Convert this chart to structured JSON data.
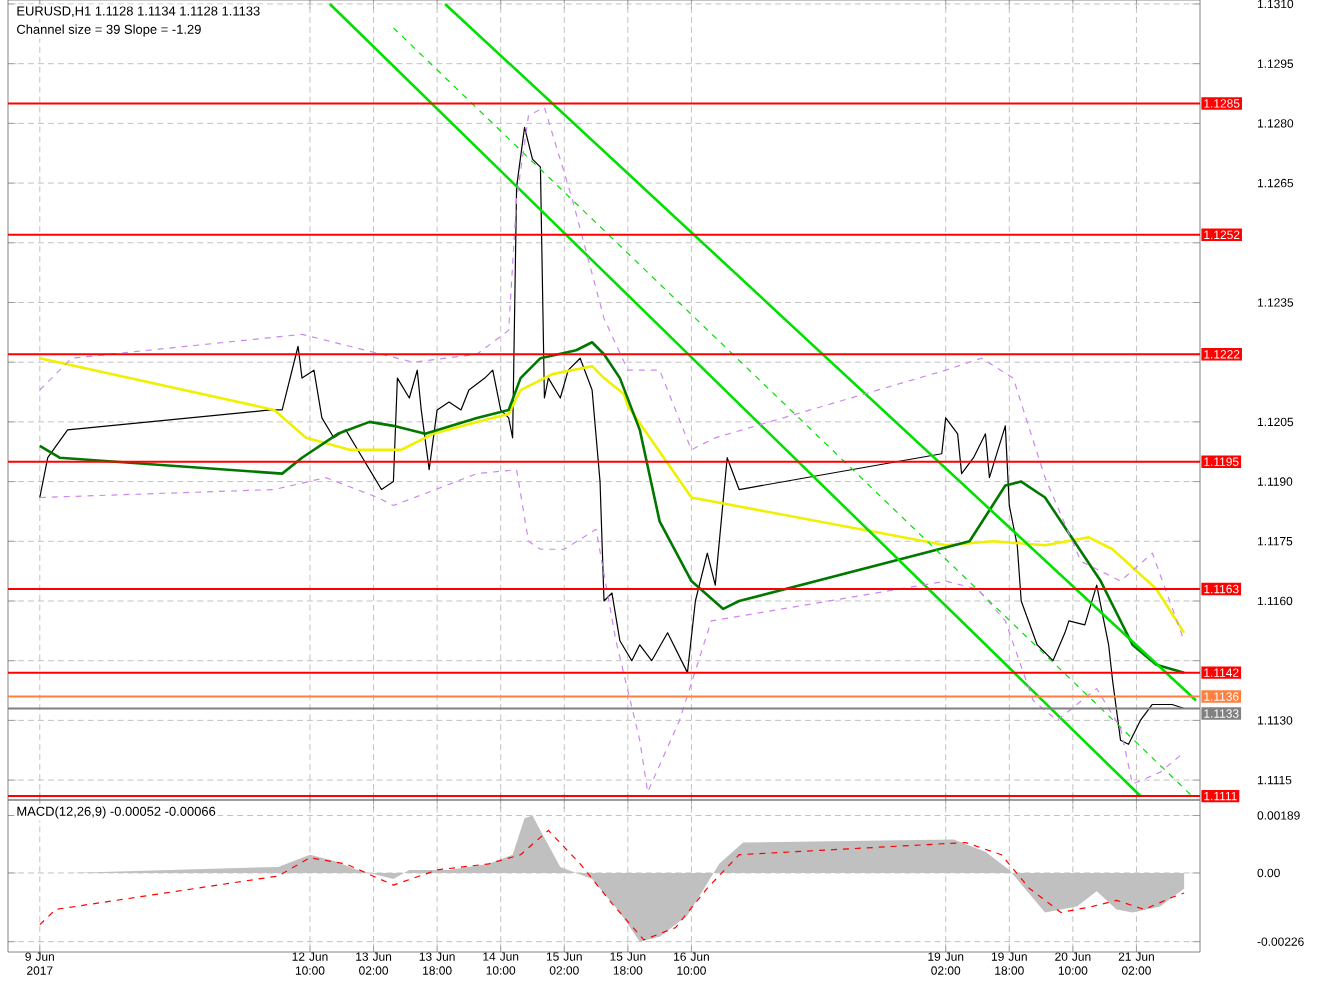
{
  "chart_data": [
    {
      "type": "line",
      "title": "EURUSD,H1  1.1128 1.1134 1.1128 1.1133",
      "subtitle": "Channel size = 39 Slope = -1.29",
      "xlim": [
        "2017-06-09T06:00",
        "2017-06-21T18:00"
      ],
      "ylim": [
        1.111,
        1.1311
      ],
      "xticks": [
        {
          "value": "2017-06-09T14:00",
          "label": null
        },
        {
          "value": "2017-06-12T10:00",
          "label": null
        },
        {
          "value": "2017-06-13T02:00",
          "label": null
        },
        {
          "value": "2017-06-13T18:00",
          "label": null
        },
        {
          "value": "2017-06-14T10:00",
          "label": null
        },
        {
          "value": "2017-06-15T02:00",
          "label": null
        },
        {
          "value": "2017-06-15T18:00",
          "label": null
        },
        {
          "value": "2017-06-16T10:00",
          "label": null
        },
        {
          "value": "2017-06-19T02:00",
          "label": null
        },
        {
          "value": "2017-06-19T18:00",
          "label": null
        },
        {
          "value": "2017-06-20T10:00",
          "label": null
        },
        {
          "value": "2017-06-21T02:00",
          "label": null
        }
      ],
      "yticks": [
        {
          "value": 1.1115,
          "label": "1.1115"
        },
        {
          "value": 1.113,
          "label": "1.1130"
        },
        {
          "value": 1.1145,
          "label": null
        },
        {
          "value": 1.116,
          "label": "1.1160"
        },
        {
          "value": 1.1175,
          "label": "1.1175"
        },
        {
          "value": 1.119,
          "label": "1.1190"
        },
        {
          "value": 1.1205,
          "label": "1.1205"
        },
        {
          "value": 1.122,
          "label": null
        },
        {
          "value": 1.1235,
          "label": "1.1235"
        },
        {
          "value": 1.125,
          "label": null
        },
        {
          "value": 1.1265,
          "label": "1.1265"
        },
        {
          "value": 1.128,
          "label": "1.1280"
        },
        {
          "value": 1.1295,
          "label": "1.1295"
        },
        {
          "value": 1.131,
          "label": "1.1310"
        }
      ],
      "tick_labels": "y",
      "grid": true,
      "series": [
        {
          "color": "#000000",
          "line_style": "solid",
          "x": [
            "2017-06-09T14:00",
            "2017-06-09T16:00",
            "2017-06-09T21:00",
            "2017-06-12T00:00",
            "2017-06-12T03:00",
            "2017-06-12T07:00",
            "2017-06-12T08:00",
            "2017-06-12T11:00",
            "2017-06-12T13:00",
            "2017-06-12T16:00",
            "2017-06-12T19:00",
            "2017-06-12T22:00",
            "2017-06-13T01:00",
            "2017-06-13T04:00",
            "2017-06-13T07:00",
            "2017-06-13T08:00",
            "2017-06-13T11:00",
            "2017-06-13T13:00",
            "2017-06-13T14:00",
            "2017-06-13T16:00",
            "2017-06-13T18:00",
            "2017-06-13T21:00",
            "2017-06-14T00:00",
            "2017-06-14T02:00",
            "2017-06-14T06:00",
            "2017-06-14T08:00",
            "2017-06-14T10:00",
            "2017-06-14T12:00",
            "2017-06-14T13:00",
            "2017-06-14T14:00",
            "2017-06-14T16:00",
            "2017-06-14T18:00",
            "2017-06-14T20:00",
            "2017-06-14T21:00",
            "2017-06-14T22:00",
            "2017-06-15T01:00",
            "2017-06-15T03:00",
            "2017-06-15T06:00",
            "2017-06-15T09:00",
            "2017-06-15T11:00",
            "2017-06-15T12:00",
            "2017-06-15T14:00",
            "2017-06-15T16:00",
            "2017-06-15T19:00",
            "2017-06-15T21:00",
            "2017-06-16T00:00",
            "2017-06-16T04:00",
            "2017-06-16T09:00",
            "2017-06-16T11:00",
            "2017-06-16T14:00",
            "2017-06-16T16:00",
            "2017-06-16T19:00",
            "2017-06-16T22:00",
            "2017-06-19T01:00",
            "2017-06-19T02:00",
            "2017-06-19T05:00",
            "2017-06-19T06:00",
            "2017-06-19T09:00",
            "2017-06-19T12:00",
            "2017-06-19T13:00",
            "2017-06-19T17:00",
            "2017-06-19T18:00",
            "2017-06-19T20:00",
            "2017-06-19T21:00",
            "2017-06-20T01:00",
            "2017-06-20T05:00",
            "2017-06-20T08:00",
            "2017-06-20T09:00",
            "2017-06-20T13:00",
            "2017-06-20T16:00",
            "2017-06-20T19:00",
            "2017-06-20T20:00",
            "2017-06-20T22:00",
            "2017-06-21T00:00",
            "2017-06-21T03:00",
            "2017-06-21T06:00",
            "2017-06-21T11:00",
            "2017-06-21T14:00"
          ],
          "values": [
            1.1186,
            1.1196,
            1.1203,
            1.1208,
            1.1208,
            1.1224,
            1.1216,
            1.1218,
            1.1206,
            1.1201,
            1.1203,
            1.1198,
            1.1193,
            1.1188,
            1.119,
            1.1216,
            1.1211,
            1.1218,
            1.1208,
            1.1193,
            1.1208,
            1.121,
            1.1208,
            1.1213,
            1.1216,
            1.1218,
            1.1208,
            1.1206,
            1.1201,
            1.1264,
            1.1279,
            1.1271,
            1.1269,
            1.1211,
            1.1216,
            1.1211,
            1.1218,
            1.1221,
            1.1213,
            1.119,
            1.116,
            1.1162,
            1.115,
            1.1145,
            1.1149,
            1.1145,
            1.1152,
            1.1142,
            1.116,
            1.1172,
            1.1164,
            1.1196,
            1.1188,
            1.1197,
            1.1206,
            1.1202,
            1.1192,
            1.1196,
            1.1202,
            1.1191,
            1.1204,
            1.1184,
            1.1174,
            1.116,
            1.1149,
            1.1145,
            1.1152,
            1.1155,
            1.1154,
            1.1164,
            1.1149,
            1.114,
            1.1125,
            1.1124,
            1.113,
            1.1134,
            1.1134,
            1.1133
          ]
        },
        {
          "color": "#f0f000",
          "line_style": "solid",
          "x": [
            "2017-06-09T14:00",
            "2017-06-12T01:00",
            "2017-06-12T09:00",
            "2017-06-12T20:00",
            "2017-06-13T09:00",
            "2017-06-13T17:00",
            "2017-06-14T04:00",
            "2017-06-14T12:00",
            "2017-06-14T15:00",
            "2017-06-14T23:00",
            "2017-06-15T09:00",
            "2017-06-15T12:00",
            "2017-06-15T17:00",
            "2017-06-15T18:00",
            "2017-06-16T10:00",
            "2017-06-19T02:00",
            "2017-06-19T14:00",
            "2017-06-20T03:00",
            "2017-06-20T14:00",
            "2017-06-20T20:00",
            "2017-06-21T07:00",
            "2017-06-21T14:00"
          ],
          "values": [
            1.1221,
            1.1208,
            1.1201,
            1.1198,
            1.1198,
            1.1202,
            1.1205,
            1.1207,
            1.1213,
            1.1217,
            1.1219,
            1.1216,
            1.1212,
            1.1209,
            1.1186,
            1.1174,
            1.1175,
            1.1174,
            1.1176,
            1.1173,
            1.1163,
            1.1152
          ]
        },
        {
          "color": "#007800",
          "line_style": "solid",
          "x": [
            "2017-06-09T14:00",
            "2017-06-09T19:00",
            "2017-06-12T03:00",
            "2017-06-12T08:00",
            "2017-06-12T17:00",
            "2017-06-13T01:00",
            "2017-06-13T07:00",
            "2017-06-13T15:00",
            "2017-06-14T04:00",
            "2017-06-14T12:00",
            "2017-06-14T15:00",
            "2017-06-14T20:00",
            "2017-06-15T05:00",
            "2017-06-15T09:00",
            "2017-06-15T12:00",
            "2017-06-15T16:00",
            "2017-06-15T21:00",
            "2017-06-16T02:00",
            "2017-06-16T10:00",
            "2017-06-16T18:00",
            "2017-06-16T22:00",
            "2017-06-19T08:00",
            "2017-06-19T17:00",
            "2017-06-19T21:00",
            "2017-06-20T03:00",
            "2017-06-20T17:00",
            "2017-06-21T01:00",
            "2017-06-21T07:00",
            "2017-06-21T14:00"
          ],
          "values": [
            1.1199,
            1.1196,
            1.1192,
            1.1196,
            1.1202,
            1.1205,
            1.1204,
            1.1202,
            1.1206,
            1.1208,
            1.1216,
            1.1221,
            1.1223,
            1.1225,
            1.1222,
            1.1216,
            1.1203,
            1.118,
            1.1165,
            1.1158,
            1.116,
            1.1175,
            1.1189,
            1.119,
            1.1186,
            1.1165,
            1.1149,
            1.1144,
            1.1142
          ]
        },
        {
          "color": "#00e000",
          "line_style": "solid",
          "x": [
            "2017-06-13T20:00",
            "2017-06-21T17:00"
          ],
          "values": [
            1.131,
            1.1135
          ]
        },
        {
          "color": "#00e000",
          "line_style": "solid",
          "x": [
            "2017-06-12T15:00",
            "2017-06-21T03:00"
          ],
          "values": [
            1.131,
            1.1111
          ]
        },
        {
          "color": "#00e000",
          "line_style": "dashed",
          "x": [
            "2017-06-13T07:00",
            "2017-06-21T16:00"
          ],
          "values": [
            1.1304,
            1.1111
          ]
        },
        {
          "color": "#cc88ee",
          "line_style": "dashed",
          "x": [
            "2017-06-09T14:00",
            "2017-06-09T22:00",
            "2017-06-12T08:00",
            "2017-06-13T00:00",
            "2017-06-13T12:00",
            "2017-06-14T04:00",
            "2017-06-14T12:00",
            "2017-06-14T14:00",
            "2017-06-14T17:00",
            "2017-06-14T21:00",
            "2017-06-15T04:00",
            "2017-06-15T12:00",
            "2017-06-15T18:00",
            "2017-06-16T02:00",
            "2017-06-16T10:00",
            "2017-06-16T16:00",
            "2017-06-19T02:00",
            "2017-06-19T11:00",
            "2017-06-19T19:00",
            "2017-06-20T03:00",
            "2017-06-20T12:00",
            "2017-06-20T22:00",
            "2017-06-21T06:00",
            "2017-06-21T14:00"
          ],
          "values": [
            1.1213,
            1.1221,
            1.1227,
            1.1223,
            1.122,
            1.1222,
            1.1228,
            1.1261,
            1.1282,
            1.1284,
            1.1261,
            1.1231,
            1.1218,
            1.1218,
            1.1198,
            1.1201,
            1.1218,
            1.1221,
            1.1216,
            1.1191,
            1.117,
            1.1165,
            1.1172,
            1.115
          ]
        },
        {
          "color": "#cc88ee",
          "line_style": "dashed",
          "x": [
            "2017-06-09T14:00",
            "2017-06-12T01:00",
            "2017-06-12T14:00",
            "2017-06-13T03:00",
            "2017-06-13T07:00",
            "2017-06-13T15:00",
            "2017-06-14T04:00",
            "2017-06-14T14:00",
            "2017-06-14T17:00",
            "2017-06-14T20:00",
            "2017-06-15T02:00",
            "2017-06-15T10:00",
            "2017-06-15T15:00",
            "2017-06-15T21:00",
            "2017-06-15T23:00",
            "2017-06-16T07:00",
            "2017-06-16T15:00",
            "2017-06-19T02:00",
            "2017-06-19T10:00",
            "2017-06-19T17:00",
            "2017-06-20T00:00",
            "2017-06-20T06:00",
            "2017-06-20T16:00",
            "2017-06-20T22:00",
            "2017-06-21T01:00",
            "2017-06-21T08:00",
            "2017-06-21T14:00"
          ],
          "values": [
            1.1186,
            1.1188,
            1.1191,
            1.1186,
            1.1184,
            1.1187,
            1.1192,
            1.1193,
            1.1175,
            1.1173,
            1.1173,
            1.1178,
            1.115,
            1.1125,
            1.1112,
            1.113,
            1.1155,
            1.1165,
            1.1163,
            1.1155,
            1.1135,
            1.113,
            1.1138,
            1.1128,
            1.1114,
            1.1117,
            1.1122
          ]
        }
      ],
      "ref_lines": [
        {
          "axis": "y",
          "value": 1.1285,
          "label": "1.1285",
          "color": "#ff0000"
        },
        {
          "axis": "y",
          "value": 1.1252,
          "label": "1.1252",
          "color": "#ff0000"
        },
        {
          "axis": "y",
          "value": 1.1222,
          "label": "1.1222",
          "color": "#ff0000"
        },
        {
          "axis": "y",
          "value": 1.1195,
          "label": "1.1195",
          "color": "#ff0000"
        },
        {
          "axis": "y",
          "value": 1.1163,
          "label": "1.1163",
          "color": "#ff0000"
        },
        {
          "axis": "y",
          "value": 1.1142,
          "label": "1.1142",
          "color": "#ff0000"
        },
        {
          "axis": "y",
          "value": 1.1136,
          "label": "1.1136",
          "color": "#ff7f3f"
        },
        {
          "axis": "y",
          "value": 1.1133,
          "label": "1.1133",
          "color": "#808080"
        },
        {
          "axis": "y",
          "value": 1.1111,
          "label": "1.1111",
          "color": "#ff0000"
        }
      ]
    },
    {
      "type": "line",
      "title": "MACD(12,26,9) -0.00052 -0.00066",
      "xlim": [
        "2017-06-09T06:00",
        "2017-06-21T18:00"
      ],
      "ylim": [
        -0.0026,
        0.0024
      ],
      "xticks": [
        {
          "value": "2017-06-09T14:00",
          "label": "9 Jun 2017"
        },
        {
          "value": "2017-06-12T10:00",
          "label": "12 Jun 10:00"
        },
        {
          "value": "2017-06-13T02:00",
          "label": "13 Jun 02:00"
        },
        {
          "value": "2017-06-13T18:00",
          "label": "13 Jun 18:00"
        },
        {
          "value": "2017-06-14T10:00",
          "label": "14 Jun 10:00"
        },
        {
          "value": "2017-06-15T02:00",
          "label": "15 Jun 02:00"
        },
        {
          "value": "2017-06-15T18:00",
          "label": "15 Jun 18:00"
        },
        {
          "value": "2017-06-16T10:00",
          "label": "16 Jun 10:00"
        },
        {
          "value": "2017-06-19T02:00",
          "label": "19 Jun 02:00"
        },
        {
          "value": "2017-06-19T18:00",
          "label": "19 Jun 18:00"
        },
        {
          "value": "2017-06-20T10:00",
          "label": "20 Jun 10:00"
        },
        {
          "value": "2017-06-21T02:00",
          "label": "21 Jun 02:00"
        }
      ],
      "yticks": [
        {
          "value": -0.00226,
          "label": "-0.00226"
        },
        {
          "value": 0,
          "label": "0.00"
        },
        {
          "value": 0.00189,
          "label": "0.00189"
        }
      ],
      "grid": true,
      "series": [
        {
          "type": "area",
          "color": "#c0c0c0",
          "x": [
            "2017-06-09T14:00",
            "2017-06-09T21:00",
            "2017-06-12T02:00",
            "2017-06-12T10:00",
            "2017-06-12T16:00",
            "2017-06-12T22:00",
            "2017-06-13T07:00",
            "2017-06-13T11:00",
            "2017-06-13T21:00",
            "2017-06-14T07:00",
            "2017-06-14T13:00",
            "2017-06-14T16:00",
            "2017-06-14T18:00",
            "2017-06-14T20:00",
            "2017-06-15T01:00",
            "2017-06-15T09:00",
            "2017-06-15T16:00",
            "2017-06-15T21:00",
            "2017-06-16T02:00",
            "2017-06-16T09:00",
            "2017-06-16T17:00",
            "2017-06-16T23:00",
            "2017-06-19T04:00",
            "2017-06-19T12:00",
            "2017-06-19T18:00",
            "2017-06-20T03:00",
            "2017-06-20T11:00",
            "2017-06-20T16:00",
            "2017-06-20T21:00",
            "2017-06-21T01:00",
            "2017-06-21T08:00",
            "2017-06-21T11:00",
            "2017-06-21T14:00"
          ],
          "values": [
            0,
            0,
            0.0002,
            0.0006,
            0.0004,
            0.0001,
            -0.0002,
            0.0001,
            0.0001,
            0.0003,
            0.0006,
            0.0018,
            0.00189,
            0.0014,
            0.0002,
            -0.0002,
            -0.0013,
            -0.00226,
            -0.0021,
            -0.0014,
            0.0003,
            0.001,
            0.0011,
            0.0007,
            0.0001,
            -0.0013,
            -0.0011,
            -0.0006,
            -0.0012,
            -0.0013,
            -0.0011,
            -0.0008,
            -0.00052
          ]
        },
        {
          "color": "#ff0000",
          "line_style": "dashed",
          "x": [
            "2017-06-09T14:00",
            "2017-06-09T18:00",
            "2017-06-12T02:00",
            "2017-06-12T10:00",
            "2017-06-12T19:00",
            "2017-06-13T07:00",
            "2017-06-13T18:00",
            "2017-06-14T07:00",
            "2017-06-14T15:00",
            "2017-06-14T22:00",
            "2017-06-15T06:00",
            "2017-06-15T14:00",
            "2017-06-15T22:00",
            "2017-06-16T06:00",
            "2017-06-16T14:00",
            "2017-06-16T22:00",
            "2017-06-19T07:00",
            "2017-06-19T16:00",
            "2017-06-19T23:00",
            "2017-06-20T07:00",
            "2017-06-20T15:00",
            "2017-06-20T21:00",
            "2017-06-21T04:00",
            "2017-06-21T11:00",
            "2017-06-21T14:00"
          ],
          "values": [
            -0.0017,
            -0.0012,
            -0.0001,
            0.0005,
            0.0003,
            -0.0004,
            0.0001,
            0.0003,
            0.0006,
            0.0014,
            0.0003,
            -0.001,
            -0.0022,
            -0.0018,
            -0.0005,
            0.0006,
            0.001,
            0.0006,
            -0.0005,
            -0.0013,
            -0.0011,
            -0.0009,
            -0.0012,
            -0.0008,
            -0.00066
          ]
        }
      ]
    }
  ]
}
